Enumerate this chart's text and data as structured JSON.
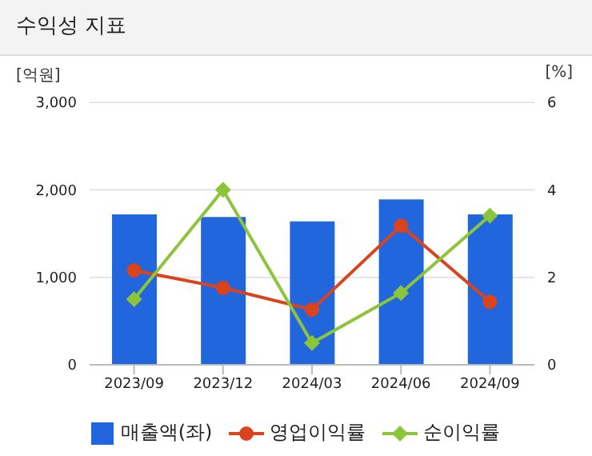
{
  "chart_data": {
    "type": "bar",
    "title": "수익성 지표",
    "ylabel": "[억원]",
    "y2label": "[%]",
    "categories": [
      "2023/09",
      "2023/12",
      "2024/03",
      "2024/06",
      "2024/09"
    ],
    "series": [
      {
        "name": "매출액(좌)",
        "color": "#2266dd",
        "values": [
          1720,
          1690,
          1640,
          1890,
          1720
        ]
      },
      {
        "name": "영업이익률",
        "type": "line",
        "axis": "y2",
        "marker": "circle",
        "color": "#d9441c",
        "values": [
          2.16,
          1.76,
          1.26,
          3.18,
          1.44
        ]
      },
      {
        "name": "순이익률",
        "type": "line",
        "axis": "y2",
        "marker": "diamond",
        "color": "#8cc43a",
        "values": [
          1.5,
          4.0,
          0.5,
          1.64,
          3.41
        ]
      }
    ],
    "ylim": [
      0,
      3000
    ],
    "yticks": [
      {
        "value": 0,
        "label": "0"
      },
      {
        "value": 1000,
        "label": "1,000"
      },
      {
        "value": 2000,
        "label": "2,000"
      },
      {
        "value": 3000,
        "label": "3,000"
      }
    ],
    "y2lim": [
      0,
      6
    ],
    "y2ticks": [
      0,
      2,
      4,
      6
    ],
    "grid": "y",
    "legend": "bottom"
  }
}
